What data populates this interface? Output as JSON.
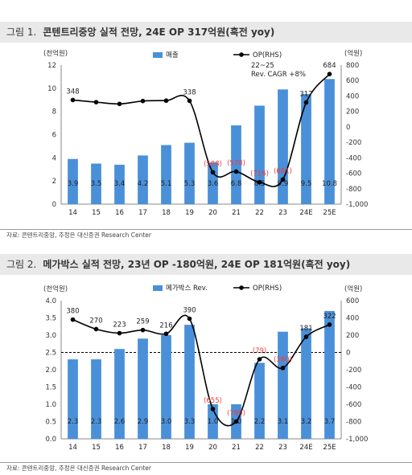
{
  "figures": [
    {
      "number_label": "그림 1.",
      "title": "콘텐트리중앙 실적 전망, 24E OP 317억원(흑전 yoy)",
      "source": "자료: 콘텐트리중앙, 추정은 대신증권 Research Center"
    },
    {
      "number_label": "그림 2.",
      "title": "메가박스 실적 전망, 23년 OP -180억원, 24E OP 181억원(흑전 yoy)",
      "source": "자료: 콘텐트리중앙, 추정은 대신증권 Research Center"
    }
  ],
  "chart_data": [
    {
      "type": "bar",
      "categories": [
        "14",
        "15",
        "16",
        "17",
        "18",
        "19",
        "20",
        "21",
        "22",
        "23",
        "24E",
        "25E"
      ],
      "bar_series": {
        "name": "매출",
        "values": [
          3.9,
          3.5,
          3.4,
          4.2,
          5.1,
          5.3,
          3.6,
          6.8,
          8.5,
          9.9,
          9.5,
          10.8
        ],
        "labels": [
          "3.9",
          "3.5",
          "3.4",
          "4.2",
          "5.1",
          "5.3",
          "3.6",
          "6.8",
          "8.5",
          "9.9",
          "9.5",
          "10.8"
        ]
      },
      "line_series": {
        "name": "OP(RHS)",
        "values": [
          348,
          320,
          298,
          335,
          340,
          338,
          -588,
          -578,
          -716,
          -681,
          317,
          684
        ],
        "labels": [
          "348",
          "",
          "",
          "",
          "",
          "338",
          "(588)",
          "(578)",
          "(716)",
          "(681)",
          "317",
          "684"
        ]
      },
      "ylabel_left": "(천억원)",
      "ylabel_right": "(억원)",
      "ylim_left": [
        0,
        12
      ],
      "yticks_left": [
        "0",
        "2",
        "4",
        "6",
        "8",
        "10",
        "12"
      ],
      "ylim_right": [
        -1000,
        800
      ],
      "yticks_right": [
        "-1,000",
        "-800",
        "-600",
        "-400",
        "-200",
        "0",
        "200",
        "400",
        "600",
        "800"
      ],
      "annotation": [
        "22~25",
        "Rev. CAGR +8%"
      ],
      "legend_position": "top",
      "colors": {
        "bar": "#4a90d9",
        "line": "#000000",
        "negative_label": "#e8403f"
      }
    },
    {
      "type": "bar",
      "categories": [
        "14",
        "15",
        "16",
        "17",
        "18",
        "19",
        "20",
        "21",
        "22",
        "23",
        "24E",
        "25E"
      ],
      "bar_series": {
        "name": "메가박스 Rev.",
        "values": [
          2.3,
          2.3,
          2.6,
          2.9,
          3.0,
          3.3,
          1.0,
          1.0,
          2.2,
          3.1,
          3.2,
          3.7
        ],
        "labels": [
          "2.3",
          "2.3",
          "2.6",
          "2.9",
          "3.0",
          "3.3",
          "1.0",
          "1.0",
          "2.2",
          "3.1",
          "3.2",
          "3.7"
        ]
      },
      "line_series": {
        "name": "OP(RHS)",
        "values": [
          380,
          270,
          223,
          259,
          216,
          390,
          -655,
          -799,
          -79,
          -180,
          181,
          322
        ],
        "labels": [
          "380",
          "270",
          "223",
          "259",
          "216",
          "390",
          "(655)",
          "(799)",
          "(79)",
          "(180)",
          "181",
          "322"
        ]
      },
      "ylabel_left": "(천억원)",
      "ylabel_right": "(억원)",
      "ylim_left": [
        0,
        4
      ],
      "yticks_left": [
        "0.0",
        "0.5",
        "1.0",
        "1.5",
        "2.0",
        "2.5",
        "3.0",
        "3.5",
        "4.0"
      ],
      "ylim_right": [
        -1000,
        600
      ],
      "yticks_right": [
        "-1,000",
        "-800",
        "-600",
        "-400",
        "-200",
        "0",
        "200",
        "400",
        "600"
      ],
      "zero_reference_line": "dashed",
      "legend_position": "top",
      "colors": {
        "bar": "#4a90d9",
        "line": "#000000",
        "negative_label": "#e8403f"
      }
    }
  ]
}
